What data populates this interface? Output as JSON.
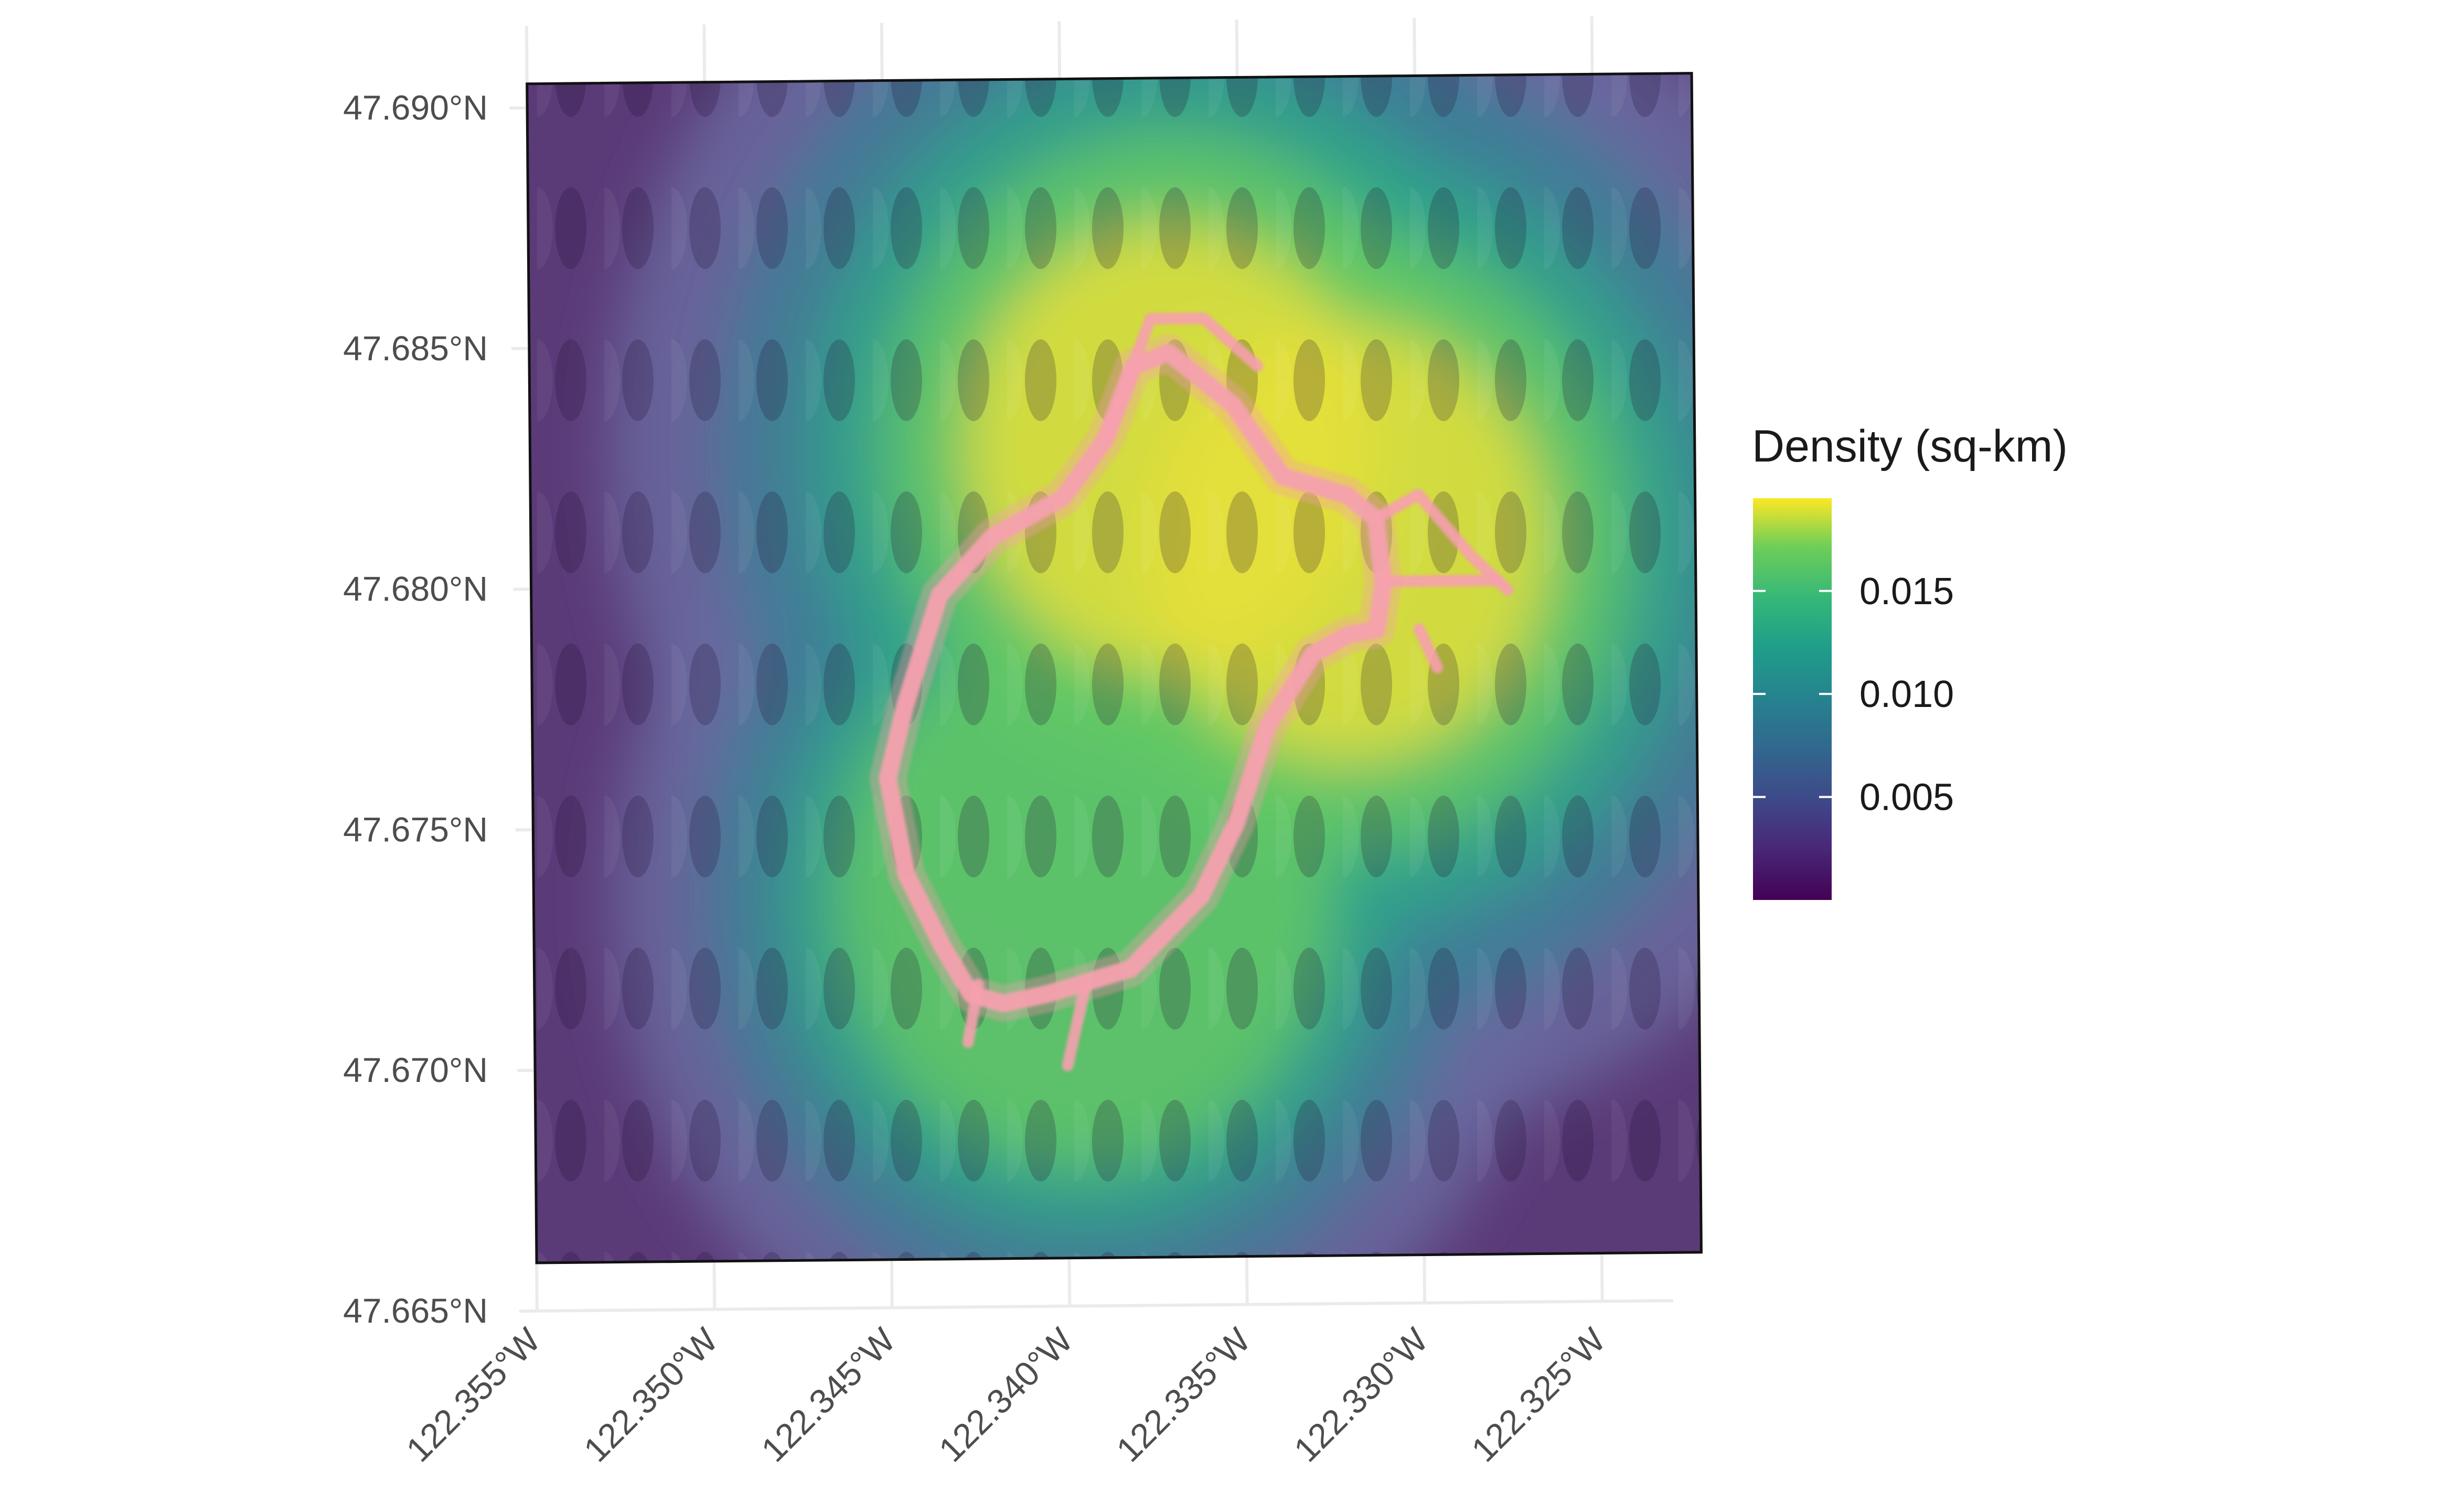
{
  "chart_data": {
    "type": "heatmap",
    "title": "",
    "xlabel": "",
    "ylabel": "",
    "x_ticks": [
      -122.355,
      -122.35,
      -122.345,
      -122.34,
      -122.335,
      -122.33,
      -122.325
    ],
    "x_tick_labels": [
      "122.355°W",
      "122.350°W",
      "122.345°W",
      "122.340°W",
      "122.335°W",
      "122.330°W",
      "122.325°W"
    ],
    "y_ticks": [
      47.665,
      47.67,
      47.675,
      47.68,
      47.685,
      47.69
    ],
    "y_tick_labels": [
      "47.665°N",
      "47.670°N",
      "47.675°N",
      "47.680°N",
      "47.685°N",
      "47.690°N"
    ],
    "xlim": [
      -122.3555,
      -122.323
    ],
    "ylim": [
      47.665,
      47.6917
    ],
    "raster_extent": {
      "lon": [
        -122.355,
        -122.3222
      ],
      "lat": [
        47.666,
        47.6905
      ]
    },
    "grid": true,
    "legend": {
      "title": "Density (sq-km)",
      "placement": "right",
      "scale": "viridis",
      "range": [
        0,
        0.0195
      ],
      "breaks": [
        0.005,
        0.01,
        0.015
      ],
      "break_labels": [
        "0.005",
        "0.010",
        "0.015"
      ]
    },
    "density_peaks": [
      {
        "lon": -122.337,
        "lat": 47.6828,
        "value": 0.0195
      },
      {
        "lon": -122.332,
        "lat": 47.6808,
        "value": 0.019
      },
      {
        "lon": -122.3395,
        "lat": 47.6735,
        "value": 0.016
      }
    ],
    "track": {
      "color": "#f6a0ae",
      "points": [
        [
          -122.337,
          47.6848
        ],
        [
          -122.3352,
          47.6837
        ],
        [
          -122.3338,
          47.6822
        ],
        [
          -122.332,
          47.6818
        ],
        [
          -122.3312,
          47.6813
        ],
        [
          -122.331,
          47.68
        ],
        [
          -122.3312,
          47.679
        ],
        [
          -122.332,
          47.6789
        ],
        [
          -122.333,
          47.6785
        ],
        [
          -122.3343,
          47.677
        ],
        [
          -122.3352,
          47.675
        ],
        [
          -122.3362,
          47.6735
        ],
        [
          -122.3382,
          47.672
        ],
        [
          -122.3405,
          47.6715
        ],
        [
          -122.3418,
          47.6713
        ],
        [
          -122.3427,
          47.6715
        ],
        [
          -122.3435,
          47.6725
        ],
        [
          -122.3445,
          47.674
        ],
        [
          -122.345,
          47.676
        ],
        [
          -122.3445,
          47.6775
        ],
        [
          -122.3435,
          47.6798
        ],
        [
          -122.342,
          47.681
        ],
        [
          -122.34,
          47.6818
        ],
        [
          -122.3388,
          47.683
        ],
        [
          -122.338,
          47.6845
        ],
        [
          -122.337,
          47.6848
        ]
      ],
      "spurs": [
        [
          [
            -122.331,
            47.68
          ],
          [
            -122.3295,
            47.68
          ],
          [
            -122.3278,
            47.68
          ]
        ],
        [
          [
            -122.3312,
            47.6813
          ],
          [
            -122.33,
            47.6818
          ],
          [
            -122.3285,
            47.6805
          ],
          [
            -122.3275,
            47.6798
          ]
        ],
        [
          [
            -122.3425,
            47.6717
          ],
          [
            -122.3428,
            47.6705
          ]
        ],
        [
          [
            -122.3395,
            47.6716
          ],
          [
            -122.34,
            47.67
          ]
        ],
        [
          [
            -122.3388,
            47.683
          ],
          [
            -122.3375,
            47.6855
          ],
          [
            -122.336,
            47.6855
          ],
          [
            -122.3345,
            47.6845
          ]
        ],
        [
          [
            -122.33,
            47.679
          ],
          [
            -122.3295,
            47.6782
          ]
        ]
      ]
    }
  }
}
